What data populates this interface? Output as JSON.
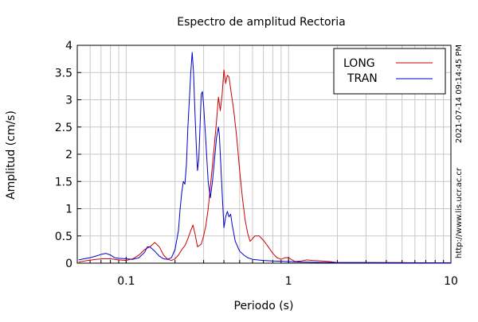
{
  "chart_data": {
    "type": "line",
    "title": "Espectro de amplitud Rectoria",
    "xlabel": "Periodo (s)",
    "ylabel": "Amplitud (cm/s)",
    "x_scale": "log",
    "xlim": [
      0.05,
      10
    ],
    "ylim": [
      0,
      4
    ],
    "x_ticks": [
      {
        "value": 0.1,
        "label": "0.1"
      },
      {
        "value": 1,
        "label": "1"
      },
      {
        "value": 10,
        "label": "10"
      }
    ],
    "y_ticks": [
      {
        "value": 0,
        "label": "0"
      },
      {
        "value": 0.5,
        "label": "0.5"
      },
      {
        "value": 1,
        "label": "1"
      },
      {
        "value": 1.5,
        "label": "1.5"
      },
      {
        "value": 2,
        "label": "2"
      },
      {
        "value": 2.5,
        "label": "2.5"
      },
      {
        "value": 3,
        "label": "3"
      },
      {
        "value": 3.5,
        "label": "3.5"
      },
      {
        "value": 4,
        "label": "4"
      }
    ],
    "grid": true,
    "legend_position": "top-right",
    "side_annotations": [
      "2021-07-14 09:14:45 PM",
      "http://www.lis.ucr.ac.cr"
    ],
    "series": [
      {
        "name": "LONG",
        "color": "#cc0000",
        "points": [
          [
            0.051,
            0.02
          ],
          [
            0.058,
            0.05
          ],
          [
            0.065,
            0.07
          ],
          [
            0.072,
            0.08
          ],
          [
            0.08,
            0.08
          ],
          [
            0.09,
            0.06
          ],
          [
            0.1,
            0.05
          ],
          [
            0.11,
            0.08
          ],
          [
            0.12,
            0.15
          ],
          [
            0.13,
            0.25
          ],
          [
            0.14,
            0.3
          ],
          [
            0.15,
            0.38
          ],
          [
            0.16,
            0.3
          ],
          [
            0.17,
            0.15
          ],
          [
            0.18,
            0.07
          ],
          [
            0.19,
            0.05
          ],
          [
            0.2,
            0.08
          ],
          [
            0.21,
            0.15
          ],
          [
            0.22,
            0.25
          ],
          [
            0.23,
            0.32
          ],
          [
            0.24,
            0.45
          ],
          [
            0.25,
            0.6
          ],
          [
            0.258,
            0.7
          ],
          [
            0.265,
            0.55
          ],
          [
            0.275,
            0.3
          ],
          [
            0.29,
            0.35
          ],
          [
            0.3,
            0.5
          ],
          [
            0.31,
            0.7
          ],
          [
            0.32,
            1.0
          ],
          [
            0.33,
            1.4
          ],
          [
            0.34,
            1.8
          ],
          [
            0.35,
            2.2
          ],
          [
            0.36,
            2.6
          ],
          [
            0.37,
            3.05
          ],
          [
            0.38,
            2.8
          ],
          [
            0.39,
            3.1
          ],
          [
            0.4,
            3.55
          ],
          [
            0.41,
            3.3
          ],
          [
            0.42,
            3.45
          ],
          [
            0.43,
            3.42
          ],
          [
            0.44,
            3.2
          ],
          [
            0.46,
            2.8
          ],
          [
            0.48,
            2.3
          ],
          [
            0.5,
            1.7
          ],
          [
            0.52,
            1.2
          ],
          [
            0.54,
            0.8
          ],
          [
            0.56,
            0.55
          ],
          [
            0.58,
            0.4
          ],
          [
            0.6,
            0.45
          ],
          [
            0.62,
            0.5
          ],
          [
            0.66,
            0.5
          ],
          [
            0.7,
            0.42
          ],
          [
            0.75,
            0.3
          ],
          [
            0.8,
            0.18
          ],
          [
            0.85,
            0.1
          ],
          [
            0.9,
            0.07
          ],
          [
            0.95,
            0.1
          ],
          [
            1.0,
            0.1
          ],
          [
            1.05,
            0.06
          ],
          [
            1.1,
            0.03
          ],
          [
            1.2,
            0.04
          ],
          [
            1.3,
            0.06
          ],
          [
            1.4,
            0.05
          ],
          [
            1.6,
            0.04
          ],
          [
            1.8,
            0.03
          ],
          [
            2.0,
            0.01
          ],
          [
            3.0,
            0.01
          ],
          [
            5.0,
            0.01
          ],
          [
            10.0,
            0.005
          ]
        ]
      },
      {
        "name": "TRAN",
        "color": "#0000cc",
        "points": [
          [
            0.051,
            0.06
          ],
          [
            0.055,
            0.08
          ],
          [
            0.06,
            0.1
          ],
          [
            0.065,
            0.13
          ],
          [
            0.07,
            0.16
          ],
          [
            0.075,
            0.18
          ],
          [
            0.08,
            0.15
          ],
          [
            0.085,
            0.1
          ],
          [
            0.09,
            0.09
          ],
          [
            0.1,
            0.08
          ],
          [
            0.11,
            0.07
          ],
          [
            0.12,
            0.1
          ],
          [
            0.13,
            0.2
          ],
          [
            0.135,
            0.3
          ],
          [
            0.14,
            0.3
          ],
          [
            0.15,
            0.22
          ],
          [
            0.16,
            0.13
          ],
          [
            0.17,
            0.08
          ],
          [
            0.18,
            0.07
          ],
          [
            0.19,
            0.1
          ],
          [
            0.2,
            0.25
          ],
          [
            0.21,
            0.6
          ],
          [
            0.215,
            1.0
          ],
          [
            0.22,
            1.3
          ],
          [
            0.225,
            1.5
          ],
          [
            0.23,
            1.45
          ],
          [
            0.235,
            1.8
          ],
          [
            0.24,
            2.5
          ],
          [
            0.245,
            3.0
          ],
          [
            0.25,
            3.5
          ],
          [
            0.255,
            3.87
          ],
          [
            0.26,
            3.5
          ],
          [
            0.265,
            2.8
          ],
          [
            0.27,
            2.2
          ],
          [
            0.275,
            1.7
          ],
          [
            0.28,
            1.9
          ],
          [
            0.285,
            2.5
          ],
          [
            0.29,
            3.1
          ],
          [
            0.295,
            3.15
          ],
          [
            0.3,
            2.9
          ],
          [
            0.31,
            2.2
          ],
          [
            0.32,
            1.5
          ],
          [
            0.33,
            1.2
          ],
          [
            0.34,
            1.5
          ],
          [
            0.35,
            1.9
          ],
          [
            0.36,
            2.3
          ],
          [
            0.37,
            2.5
          ],
          [
            0.375,
            2.35
          ],
          [
            0.38,
            2.0
          ],
          [
            0.39,
            1.3
          ],
          [
            0.4,
            0.65
          ],
          [
            0.41,
            0.85
          ],
          [
            0.42,
            0.95
          ],
          [
            0.43,
            0.85
          ],
          [
            0.44,
            0.9
          ],
          [
            0.45,
            0.7
          ],
          [
            0.47,
            0.4
          ],
          [
            0.5,
            0.22
          ],
          [
            0.53,
            0.15
          ],
          [
            0.56,
            0.1
          ],
          [
            0.6,
            0.07
          ],
          [
            0.7,
            0.05
          ],
          [
            0.8,
            0.04
          ],
          [
            1.0,
            0.03
          ],
          [
            1.2,
            0.02
          ],
          [
            1.5,
            0.015
          ],
          [
            2.0,
            0.01
          ],
          [
            3.0,
            0.01
          ],
          [
            5.0,
            0.008
          ],
          [
            10.0,
            0.005
          ]
        ]
      }
    ]
  }
}
